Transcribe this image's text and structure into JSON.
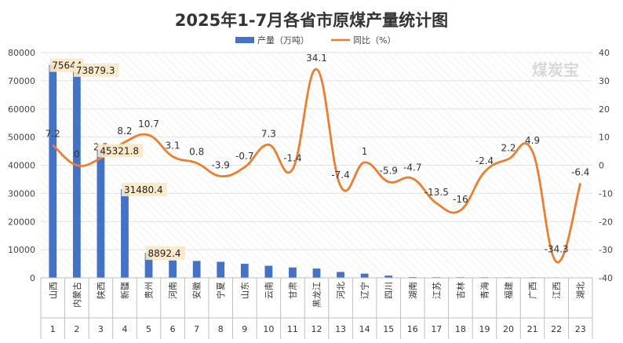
{
  "chart_data": {
    "type": "bar",
    "title": "2025年1-7月各省市原煤产量统计图",
    "watermark": "煤炭宝",
    "legend_position": "top-center",
    "grid": true,
    "categories": [
      "山西",
      "内蒙古",
      "陕西",
      "新疆",
      "贵州",
      "河南",
      "安徽",
      "宁夏",
      "山东",
      "云南",
      "甘肃",
      "黑龙江",
      "河北",
      "辽宁",
      "四川",
      "湖南",
      "江苏",
      "吉林",
      "青海",
      "福建",
      "广西",
      "江西",
      "湖北"
    ],
    "index_row": [
      "1",
      "2",
      "3",
      "4",
      "5",
      "6",
      "7",
      "8",
      "9",
      "10",
      "11",
      "12",
      "13",
      "14",
      "15",
      "16",
      "17",
      "18",
      "19",
      "20",
      "21",
      "22",
      "23"
    ],
    "y_left": {
      "ylim": [
        0,
        80000
      ],
      "ticks": [
        "0",
        "10000",
        "20000",
        "30000",
        "40000",
        "50000",
        "60000",
        "70000",
        "80000"
      ]
    },
    "y_right": {
      "ylim": [
        -40,
        40
      ],
      "ticks": [
        "-40",
        "-30",
        "-20",
        "-10",
        "0",
        "10",
        "20",
        "30",
        "40"
      ]
    },
    "series": [
      {
        "name": "产量（万吨）",
        "kind": "bar",
        "axis": "left",
        "color": "#4472C4",
        "values": [
          75644,
          73879.3,
          45321.8,
          31480.4,
          8892.4,
          6200,
          6000,
          5700,
          5000,
          4300,
          3700,
          3300,
          2100,
          1500,
          800,
          300,
          250,
          230,
          220,
          200,
          180,
          150,
          120
        ],
        "labels": [
          "75644",
          "73879.3",
          "45321.8",
          "31480.4",
          "8892.4",
          "",
          "",
          "",
          "",
          "",
          "",
          "",
          "",
          "",
          "",
          "",
          "",
          "",
          "",
          "",
          "",
          "",
          ""
        ]
      },
      {
        "name": "同比（%）",
        "kind": "line",
        "axis": "right",
        "color": "#ED7D31",
        "values": [
          7.2,
          0,
          2.5,
          8.2,
          10.7,
          3.1,
          0.8,
          -3.9,
          -0.7,
          7.3,
          -1.4,
          34.1,
          -7.4,
          1,
          -5.9,
          -4.7,
          -13.5,
          -16,
          -2.4,
          2.2,
          4.9,
          -34.3,
          -6.4
        ],
        "labels": [
          "7.2",
          "0",
          "2.5",
          "8.2",
          "10.7",
          "3.1",
          "0.8",
          "-3.9",
          "-0.7",
          "7.3",
          "-1.4",
          "34.1",
          "-7.4",
          "1",
          "-5.9",
          "-4.7",
          "-13.5",
          "-16",
          "-2.4",
          "2.2",
          "4.9",
          "-34.3",
          "-6.4"
        ]
      }
    ]
  }
}
